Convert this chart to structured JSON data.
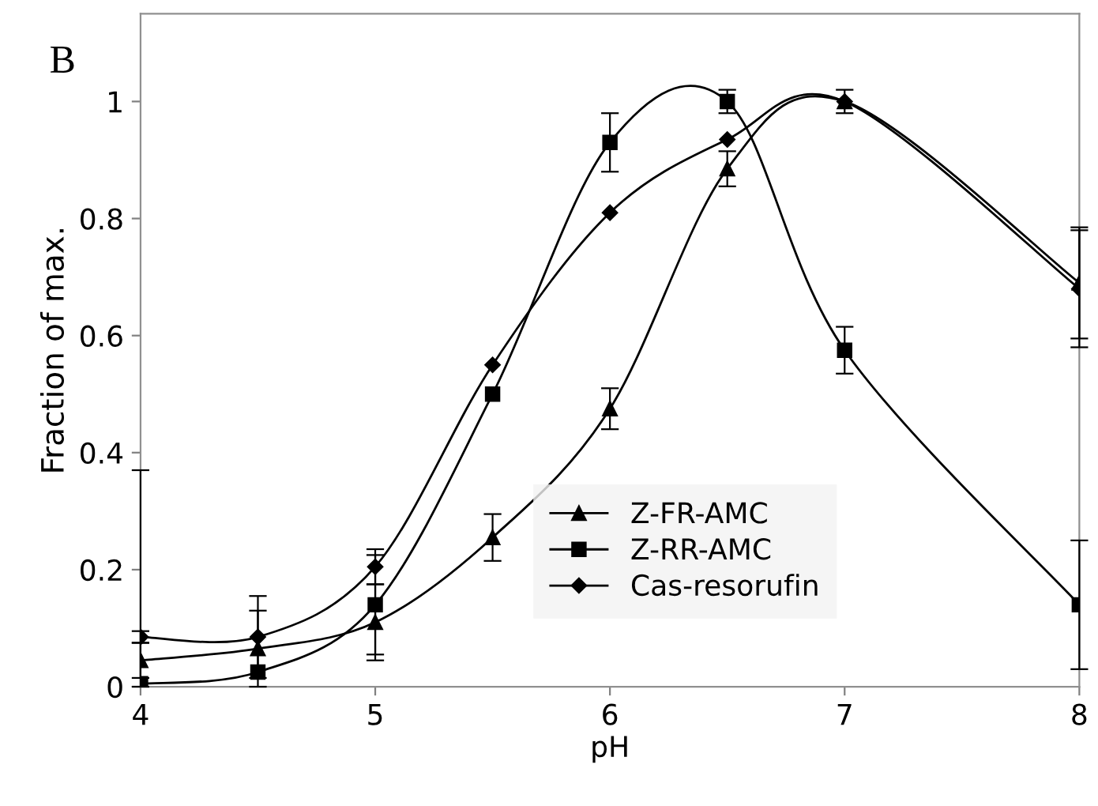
{
  "chart_data": {
    "type": "line",
    "xlabel": "pH",
    "ylabel": "Fraction of max.",
    "annotations": [
      "B"
    ],
    "x": [
      4,
      4.5,
      5,
      5.5,
      6,
      6.5,
      7,
      8
    ],
    "series": [
      {
        "name": "Z-FR-AMC",
        "color": "#000000",
        "marker": "triangle",
        "values": [
          0.045,
          0.065,
          0.11,
          0.255,
          0.475,
          0.885,
          1.0,
          0.69
        ],
        "errors": [
          0.03,
          0.065,
          0.065,
          0.04,
          0.035,
          0.03,
          0.02,
          0.095
        ]
      },
      {
        "name": "Z-RR-AMC",
        "color": "#000000",
        "marker": "square",
        "values": [
          0.005,
          0.025,
          0.14,
          0.5,
          0.93,
          1.0,
          0.575,
          0.14
        ],
        "errors": [
          [
            0,
            0.37
          ],
          null,
          0.085,
          null,
          0.05,
          0.02,
          0.04,
          0.11
        ]
      },
      {
        "name": "Cas-resorufin",
        "color": "#000000",
        "marker": "diamond",
        "values": [
          0.085,
          0.085,
          0.205,
          0.55,
          0.81,
          0.935,
          1.0,
          0.68
        ],
        "errors": [
          0.01,
          0.07,
          0.03,
          null,
          null,
          null,
          null,
          0.1
        ]
      }
    ],
    "xlim": [
      4,
      8
    ],
    "xticks": [
      4,
      5,
      6,
      7,
      8
    ],
    "ylim": [
      0,
      1.15
    ],
    "yticks": [
      0,
      0.2,
      0.4,
      0.6,
      0.8,
      1
    ],
    "grid": false,
    "legend": "bottom",
    "line_style": "solid"
  }
}
